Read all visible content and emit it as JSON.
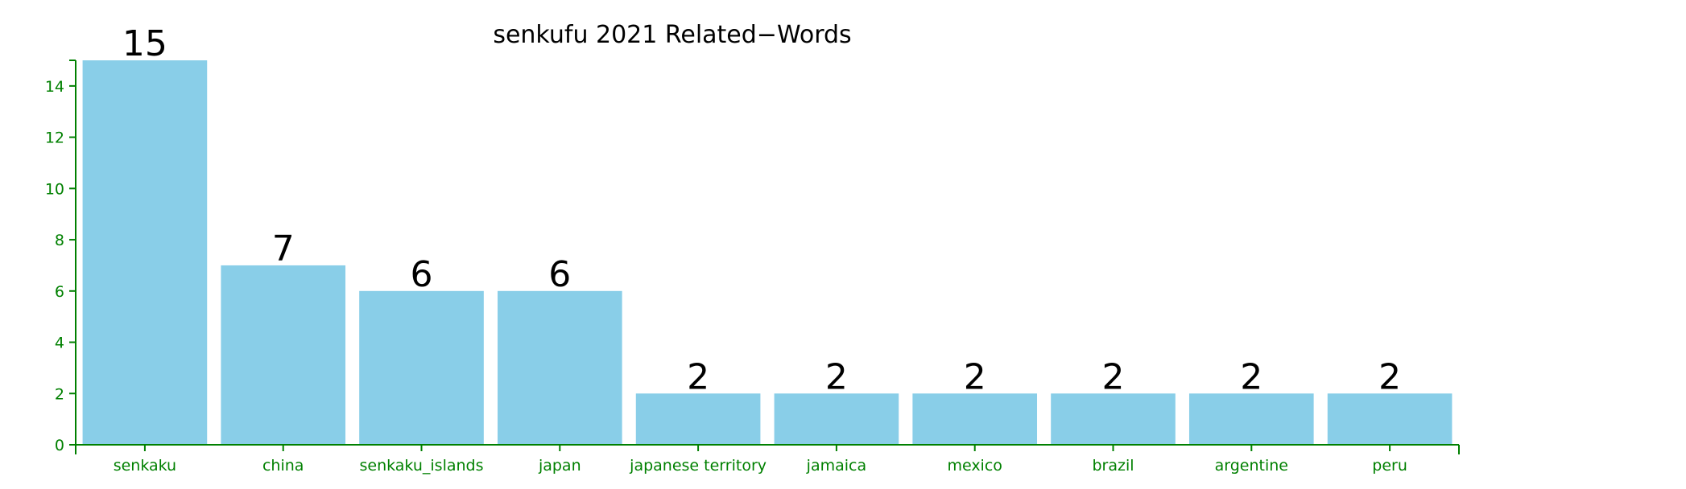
{
  "chart_data": {
    "type": "bar",
    "title": "senkufu 2021 Related−Words",
    "categories": [
      "senkaku",
      "china",
      "senkaku_islands",
      "japan",
      "japanese territory",
      "jamaica",
      "mexico",
      "brazil",
      "argentine",
      "peru"
    ],
    "values": [
      15,
      7,
      6,
      6,
      2,
      2,
      2,
      2,
      2,
      2
    ],
    "xlabel": "",
    "ylabel": "",
    "ylim": [
      0,
      15
    ],
    "yticks": [
      0,
      2,
      4,
      6,
      8,
      10,
      12,
      14
    ],
    "grid": false,
    "bar_color": "#89CEE8",
    "axis_color": "#008000",
    "label_color": "#000000"
  }
}
